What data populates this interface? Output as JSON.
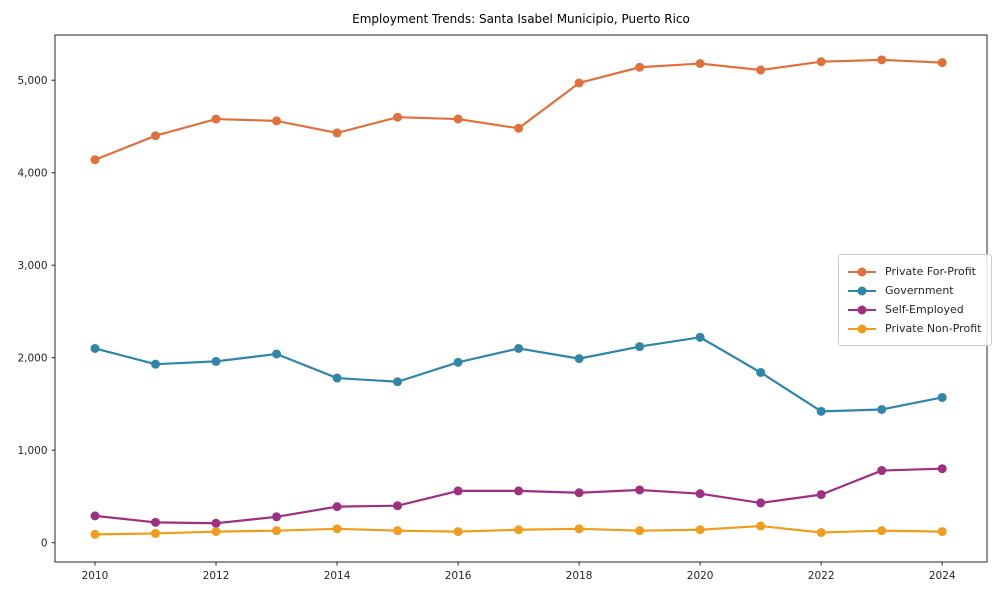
{
  "title": "Employment Trends: Santa Isabel Municipio, Puerto Rico",
  "chart_data": {
    "type": "line",
    "title": "Employment Trends: Santa Isabel Municipio, Puerto Rico",
    "xlabel": "",
    "ylabel": "",
    "x": [
      2010,
      2011,
      2012,
      2013,
      2014,
      2015,
      2016,
      2017,
      2018,
      2019,
      2020,
      2021,
      2022,
      2023,
      2024
    ],
    "series": [
      {
        "name": "Private For-Profit",
        "color": "#e0713d",
        "values": [
          4140,
          4400,
          4580,
          4560,
          4430,
          4600,
          4580,
          4480,
          4970,
          5140,
          5180,
          5110,
          5200,
          5220,
          5190
        ]
      },
      {
        "name": "Government",
        "color": "#3185a8",
        "values": [
          2100,
          1930,
          1960,
          2040,
          1780,
          1740,
          1950,
          2100,
          1990,
          2120,
          2220,
          1840,
          1420,
          1440,
          1570
        ]
      },
      {
        "name": "Self-Employed",
        "color": "#9e3082",
        "values": [
          290,
          220,
          210,
          280,
          390,
          400,
          560,
          560,
          540,
          570,
          530,
          430,
          520,
          780,
          800
        ]
      },
      {
        "name": "Private Non-Profit",
        "color": "#f09c1c",
        "values": [
          90,
          100,
          120,
          130,
          150,
          130,
          120,
          140,
          150,
          130,
          140,
          180,
          110,
          130,
          120
        ]
      }
    ],
    "xticks": [
      "2010",
      "2012",
      "2014",
      "2016",
      "2018",
      "2020",
      "2022",
      "2024"
    ],
    "yticks": [
      0,
      1000,
      2000,
      3000,
      4000,
      5000
    ],
    "ytick_labels": [
      "0",
      "1,000",
      "2,000",
      "3,000",
      "4,000",
      "5,000"
    ],
    "ylim": [
      -210,
      5490
    ],
    "grid": false,
    "legend_position": "center right"
  }
}
